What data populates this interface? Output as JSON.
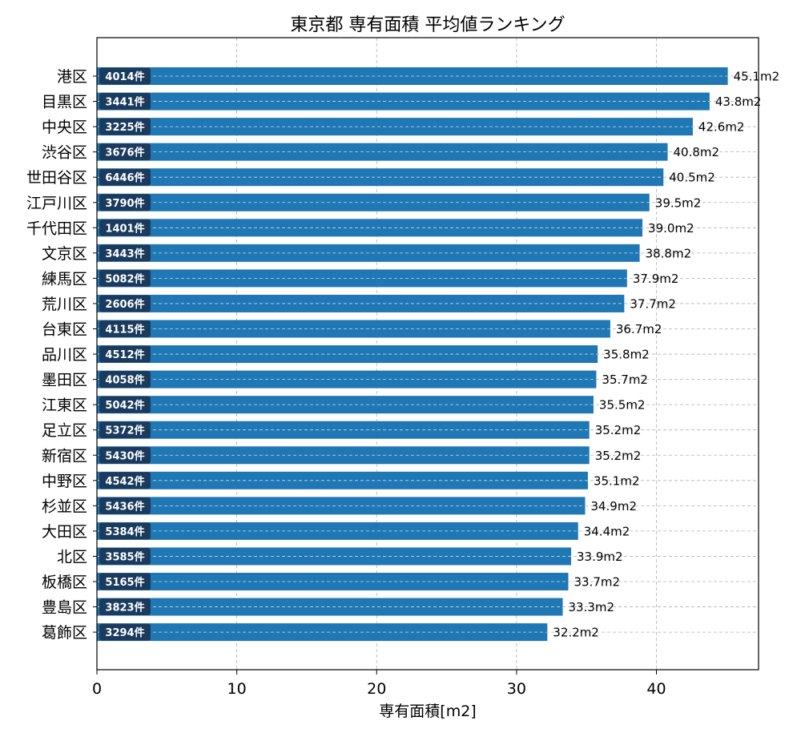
{
  "chart_data": {
    "type": "bar",
    "orientation": "horizontal",
    "title": "東京都 専有面積 平均値ランキング",
    "xlabel": "専有面積[m2]",
    "ylabel": "",
    "xlim": [
      0,
      47.3
    ],
    "xticks": [
      0,
      10,
      20,
      30,
      40
    ],
    "grid": true,
    "unit": "m2",
    "count_suffix": "件",
    "categories": [
      "港区",
      "目黒区",
      "中央区",
      "渋谷区",
      "世田谷区",
      "江戸川区",
      "千代田区",
      "文京区",
      "練馬区",
      "荒川区",
      "台東区",
      "品川区",
      "墨田区",
      "江東区",
      "足立区",
      "新宿区",
      "中野区",
      "杉並区",
      "大田区",
      "北区",
      "板橋区",
      "豊島区",
      "葛飾区"
    ],
    "values": [
      45.1,
      43.8,
      42.6,
      40.8,
      40.5,
      39.5,
      39.0,
      38.8,
      37.9,
      37.7,
      36.7,
      35.8,
      35.7,
      35.5,
      35.2,
      35.2,
      35.1,
      34.9,
      34.4,
      33.9,
      33.7,
      33.3,
      32.2
    ],
    "value_labels": [
      "45.1m2",
      "43.8m2",
      "42.6m2",
      "40.8m2",
      "40.5m2",
      "39.5m2",
      "39.0m2",
      "38.8m2",
      "37.9m2",
      "37.7m2",
      "36.7m2",
      "35.8m2",
      "35.7m2",
      "35.5m2",
      "35.2m2",
      "35.2m2",
      "35.1m2",
      "34.9m2",
      "34.4m2",
      "33.9m2",
      "33.7m2",
      "33.3m2",
      "32.2m2"
    ],
    "counts": [
      "4014件",
      "3441件",
      "3225件",
      "3676件",
      "6446件",
      "3790件",
      "1401件",
      "3443件",
      "5082件",
      "2606件",
      "4115件",
      "4512件",
      "4058件",
      "5042件",
      "5372件",
      "5430件",
      "4542件",
      "5436件",
      "5384件",
      "3585件",
      "5165件",
      "3823件",
      "3294件"
    ],
    "colors": {
      "bar": "#1f77b4",
      "count_box": "#1b3b5e",
      "grid": "#b0b0b0"
    }
  }
}
